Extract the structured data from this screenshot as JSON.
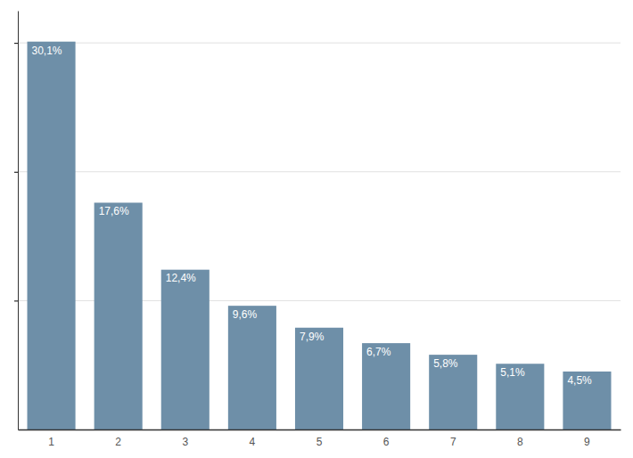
{
  "chart_data": {
    "type": "bar",
    "categories": [
      "1",
      "2",
      "3",
      "4",
      "5",
      "6",
      "7",
      "8",
      "9"
    ],
    "values": [
      30.1,
      17.6,
      12.4,
      9.6,
      7.9,
      6.7,
      5.8,
      5.1,
      4.5
    ],
    "value_labels": [
      "30,1%",
      "17,6%",
      "12,4%",
      "9,6%",
      "7,9%",
      "6,7%",
      "5,8%",
      "5,1%",
      "4,5%"
    ],
    "data_labels": true,
    "color": "#6e8fa8",
    "ylim": [
      0,
      32.5
    ],
    "yticks": [
      10,
      20,
      30
    ],
    "grid": true,
    "tick_labels": "x"
  }
}
